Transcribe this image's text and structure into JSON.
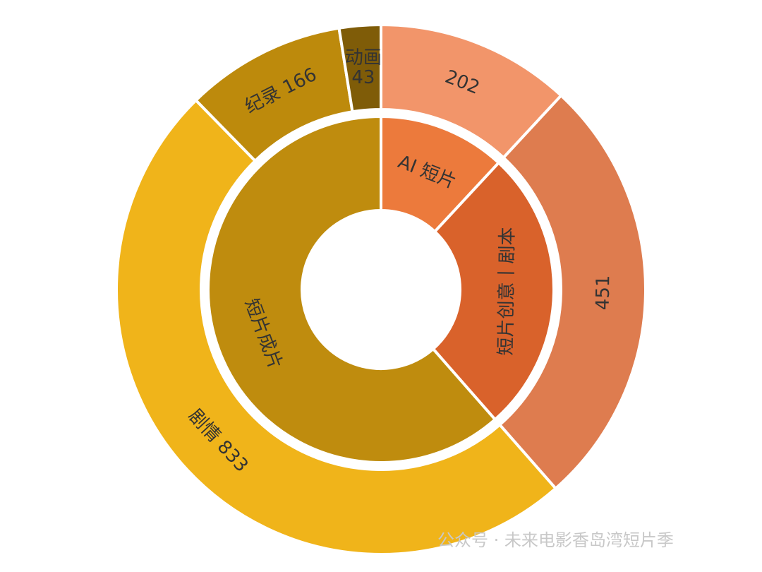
{
  "chart_data": {
    "type": "sunburst",
    "nodes": [
      {
        "name": "AI 短片",
        "color": "#ec7a3c",
        "children": [
          {
            "value": 202,
            "color": "#f2956a"
          }
        ]
      },
      {
        "name": "短片创意丨剧本",
        "color": "#d9622b",
        "children": [
          {
            "value": 451,
            "color": "#de7c4f"
          }
        ]
      },
      {
        "name": "短片成片",
        "color": "#bf8c0e",
        "children": [
          {
            "name": "剧情",
            "value": 833,
            "color": "#f0b41a"
          },
          {
            "name": "纪录",
            "value": 166,
            "color": "#bd8a0c"
          },
          {
            "name": "动画",
            "value": 43,
            "color": "#7f5c08"
          }
        ]
      }
    ]
  },
  "watermark": "公众号 · 未来电影香岛湾短片季"
}
